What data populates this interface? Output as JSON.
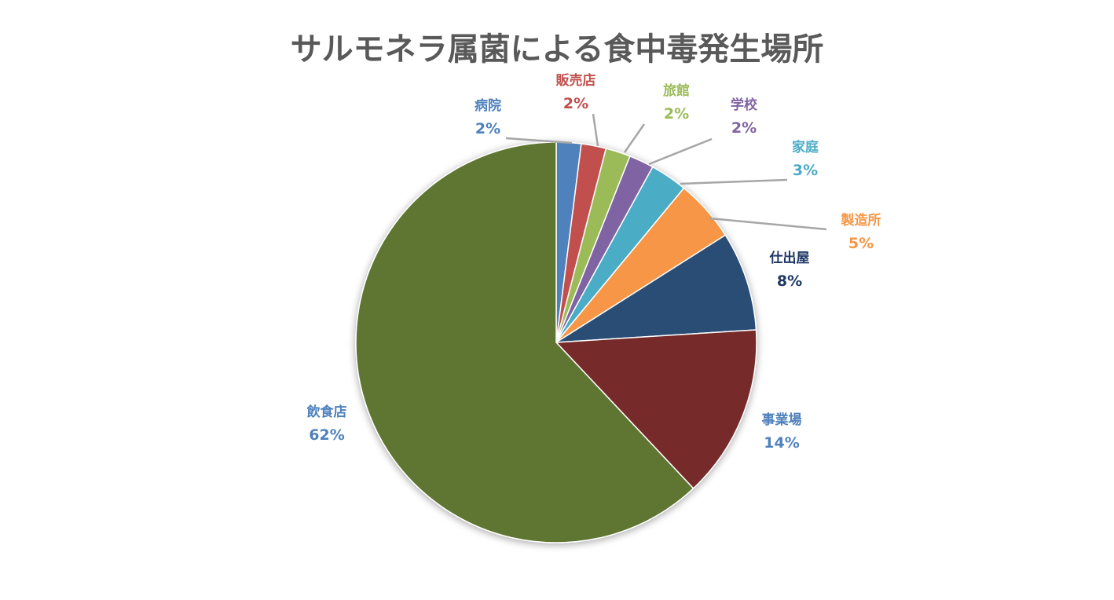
{
  "chart_data": {
    "type": "pie",
    "title": "サルモネラ属菌による食中毒発生場所",
    "slices": [
      {
        "name": "病院",
        "value": 2,
        "label": "2%",
        "color": "#4F81BD"
      },
      {
        "name": "販売店",
        "value": 2,
        "label": "2%",
        "color": "#C0504D"
      },
      {
        "name": "旅館",
        "value": 2,
        "label": "2%",
        "color": "#9BBB59"
      },
      {
        "name": "学校",
        "value": 2,
        "label": "2%",
        "color": "#8064A2"
      },
      {
        "name": "家庭",
        "value": 3,
        "label": "3%",
        "color": "#4BACC6"
      },
      {
        "name": "製造所",
        "value": 5,
        "label": "5%",
        "color": "#F79646"
      },
      {
        "name": "仕出屋",
        "value": 8,
        "label": "8%",
        "color": "#2C4D75"
      },
      {
        "name": "事業場",
        "value": 14,
        "label": "14%",
        "color": "#772C2A"
      },
      {
        "name": "飲食店",
        "value": 62,
        "label": "62%",
        "color": "#5F7530"
      }
    ]
  }
}
